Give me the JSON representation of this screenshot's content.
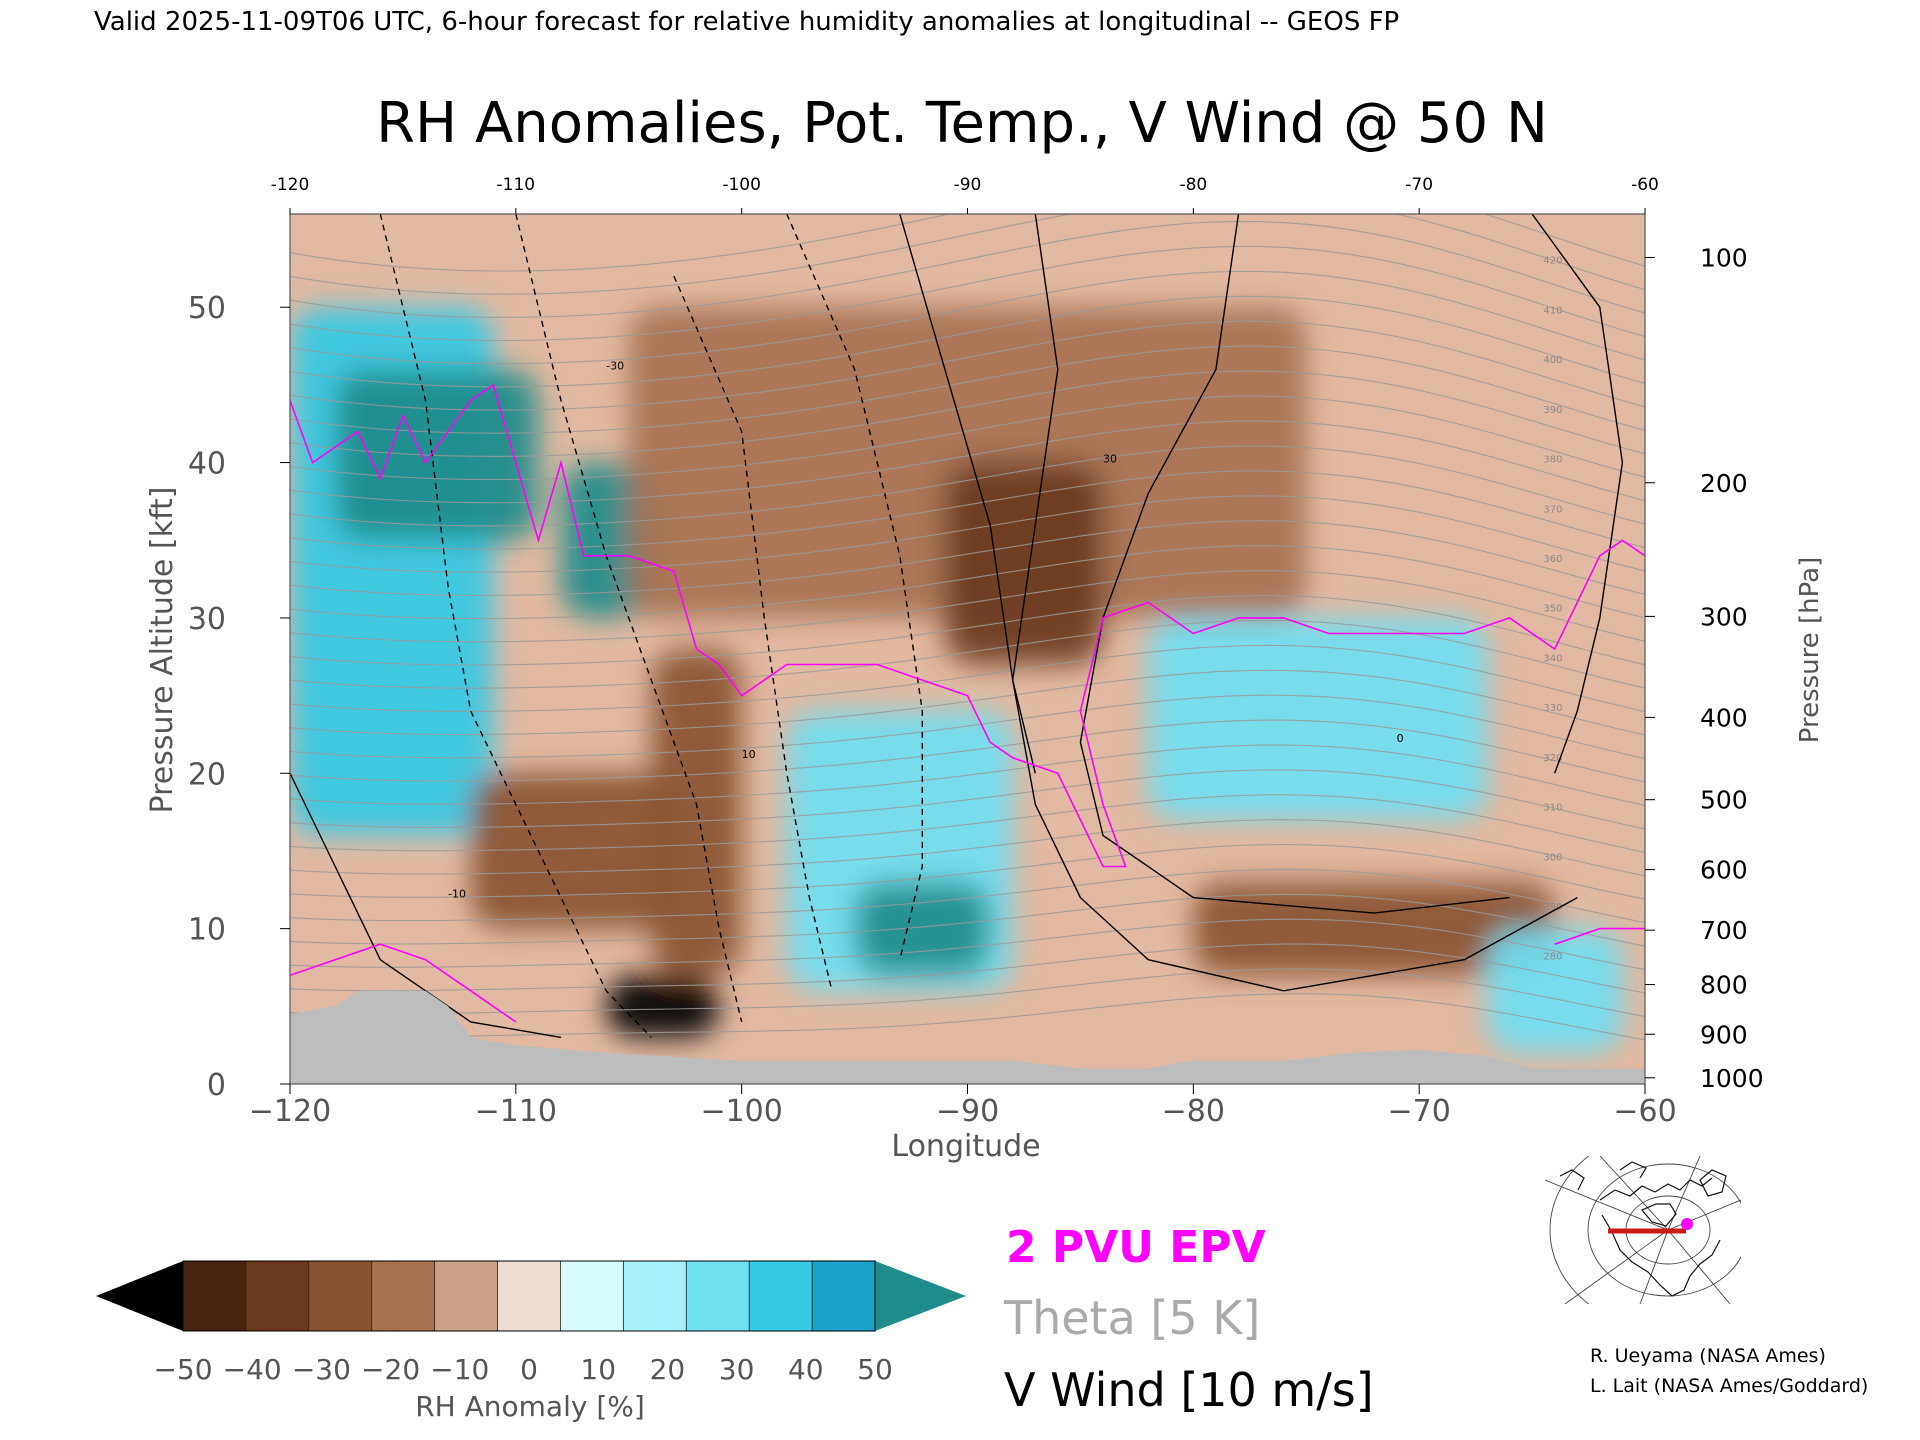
{
  "header": {
    "valid_line": "Valid 2025-11-09T06 UTC, 6-hour forecast for relative humidity anomalies at longitudinal -- GEOS FP"
  },
  "chart_data": {
    "type": "heatmap",
    "title": "RH Anomalies, Pot. Temp., V Wind @ 50 N",
    "xlabel": "Longitude",
    "ylabel_left": "Pressure Altitude [kft]",
    "ylabel_right": "Pressure [hPa]",
    "xlim": [
      -120,
      -60
    ],
    "ylim_kft": [
      0,
      56
    ],
    "x_ticks": [
      -120,
      -110,
      -100,
      -90,
      -80,
      -70,
      -60
    ],
    "x_tick_labels": [
      "−120",
      "−110",
      "−100",
      "−90",
      "−80",
      "−70",
      "−60"
    ],
    "top_tick_labels": [
      "-120",
      "-110",
      "-100",
      "-90",
      "-80",
      "-70",
      "-60"
    ],
    "left_ticks_kft": [
      0,
      10,
      20,
      30,
      40,
      50
    ],
    "right_ticks": [
      {
        "label": "100",
        "kft": 53.2
      },
      {
        "label": "200",
        "kft": 38.7
      },
      {
        "label": "300",
        "kft": 30.1
      },
      {
        "label": "400",
        "kft": 23.6
      },
      {
        "label": "500",
        "kft": 18.3
      },
      {
        "label": "600",
        "kft": 13.8
      },
      {
        "label": "700",
        "kft": 9.9
      },
      {
        "label": "800",
        "kft": 6.4
      },
      {
        "label": "900",
        "kft": 3.2
      },
      {
        "label": "1000",
        "kft": 0.4
      }
    ],
    "colorbar": {
      "label": "RH Anomaly [%]",
      "tick_labels": [
        "−50",
        "−40",
        "−30",
        "−20",
        "−10",
        "0",
        "10",
        "20",
        "30",
        "40",
        "50"
      ],
      "colors": [
        "#4a2410",
        "#6b3a1c",
        "#8a5330",
        "#a77050",
        "#c9a08a",
        "#ecdcd2",
        "#d8fafc",
        "#a6f0f8",
        "#6fe0f2",
        "#35c9e6",
        "#1aa3c8"
      ],
      "under_color": "#000000",
      "over_color": "#1e8c8a"
    },
    "legend": [
      {
        "name": "2 PVU EPV",
        "color": "#ff00ff"
      },
      {
        "name": "Theta [5 K]",
        "color": "#aaaaaa"
      },
      {
        "name": "V Wind [10 m/s]",
        "color": "#000000"
      }
    ],
    "theta_levels_K": [
      280,
      290,
      300,
      310,
      320,
      330,
      340,
      350,
      360,
      370,
      380,
      390,
      400,
      410,
      420
    ],
    "vwind_labels": [
      "-30",
      "-10",
      "10",
      "30",
      "0"
    ],
    "anomaly_regions": [
      {
        "lon": [
          -120,
          -111
        ],
        "kft": [
          16,
          50
        ],
        "rh_anom": 40
      },
      {
        "lon": [
          -118,
          -109
        ],
        "kft": [
          35,
          46
        ],
        "rh_anom": 50
      },
      {
        "lon": [
          -108,
          -104
        ],
        "kft": [
          30,
          40
        ],
        "rh_anom": 50
      },
      {
        "lon": [
          -112,
          -103
        ],
        "kft": [
          10,
          20
        ],
        "rh_anom": -30
      },
      {
        "lon": [
          -106,
          -101
        ],
        "kft": [
          3,
          7
        ],
        "rh_anom": -50
      },
      {
        "lon": [
          -104,
          -100
        ],
        "kft": [
          7,
          28
        ],
        "rh_anom": -30
      },
      {
        "lon": [
          -98,
          -88
        ],
        "kft": [
          6,
          24
        ],
        "rh_anom": 30
      },
      {
        "lon": [
          -95,
          -89
        ],
        "kft": [
          7,
          13
        ],
        "rh_anom": 50
      },
      {
        "lon": [
          -105,
          -75
        ],
        "kft": [
          30,
          50
        ],
        "rh_anom": -20
      },
      {
        "lon": [
          -91,
          -84
        ],
        "kft": [
          27,
          40
        ],
        "rh_anom": -40
      },
      {
        "lon": [
          -82,
          -67
        ],
        "kft": [
          17,
          30
        ],
        "rh_anom": 30
      },
      {
        "lon": [
          -80,
          -64
        ],
        "kft": [
          7,
          13
        ],
        "rh_anom": -30
      },
      {
        "lon": [
          -67,
          -61
        ],
        "kft": [
          2,
          10
        ],
        "rh_anom": 30
      }
    ]
  },
  "inset_map": {
    "name": "location-map"
  },
  "credits": [
    "R. Ueyama (NASA Ames)",
    "L. Lait (NASA Ames/Goddard)"
  ]
}
